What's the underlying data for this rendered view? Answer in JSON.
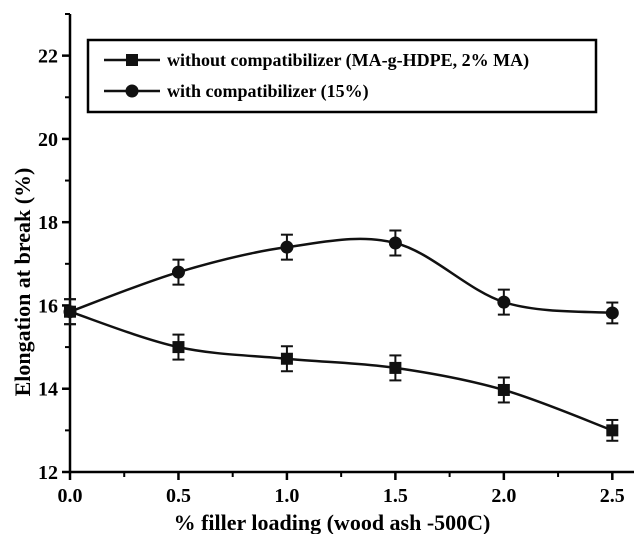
{
  "chart_data": {
    "type": "line",
    "title": "",
    "xlabel": "% filler loading (wood ash -500C)",
    "ylabel": "Elongation at break (%)",
    "xlim": [
      0,
      2.6
    ],
    "ylim": [
      12,
      23
    ],
    "xticks": [
      0.0,
      0.5,
      1.0,
      1.5,
      2.0,
      2.5
    ],
    "xtick_labels": [
      "0.0",
      "0.5",
      "1.0",
      "1.5",
      "2.0",
      "2.5"
    ],
    "yticks": [
      12,
      14,
      16,
      18,
      20,
      22
    ],
    "ytick_labels": [
      "12",
      "14",
      "16",
      "18",
      "20",
      "22"
    ],
    "grid": false,
    "legend_position": "top-right",
    "series": [
      {
        "name": "without compatibilizer (MA-g-HDPE, 2% MA)",
        "marker": "square",
        "x": [
          0.0,
          0.5,
          1.0,
          1.5,
          2.0,
          2.5
        ],
        "y": [
          15.85,
          15.0,
          14.72,
          14.5,
          13.97,
          13.0
        ],
        "yerr": [
          0.3,
          0.3,
          0.3,
          0.3,
          0.3,
          0.25
        ]
      },
      {
        "name": "with compatibilizer (15%)",
        "marker": "circle",
        "x": [
          0.0,
          0.5,
          1.0,
          1.5,
          2.0,
          2.5
        ],
        "y": [
          15.85,
          16.8,
          17.4,
          17.5,
          16.08,
          15.82
        ],
        "yerr": [
          0.3,
          0.3,
          0.3,
          0.3,
          0.3,
          0.25
        ]
      }
    ]
  }
}
